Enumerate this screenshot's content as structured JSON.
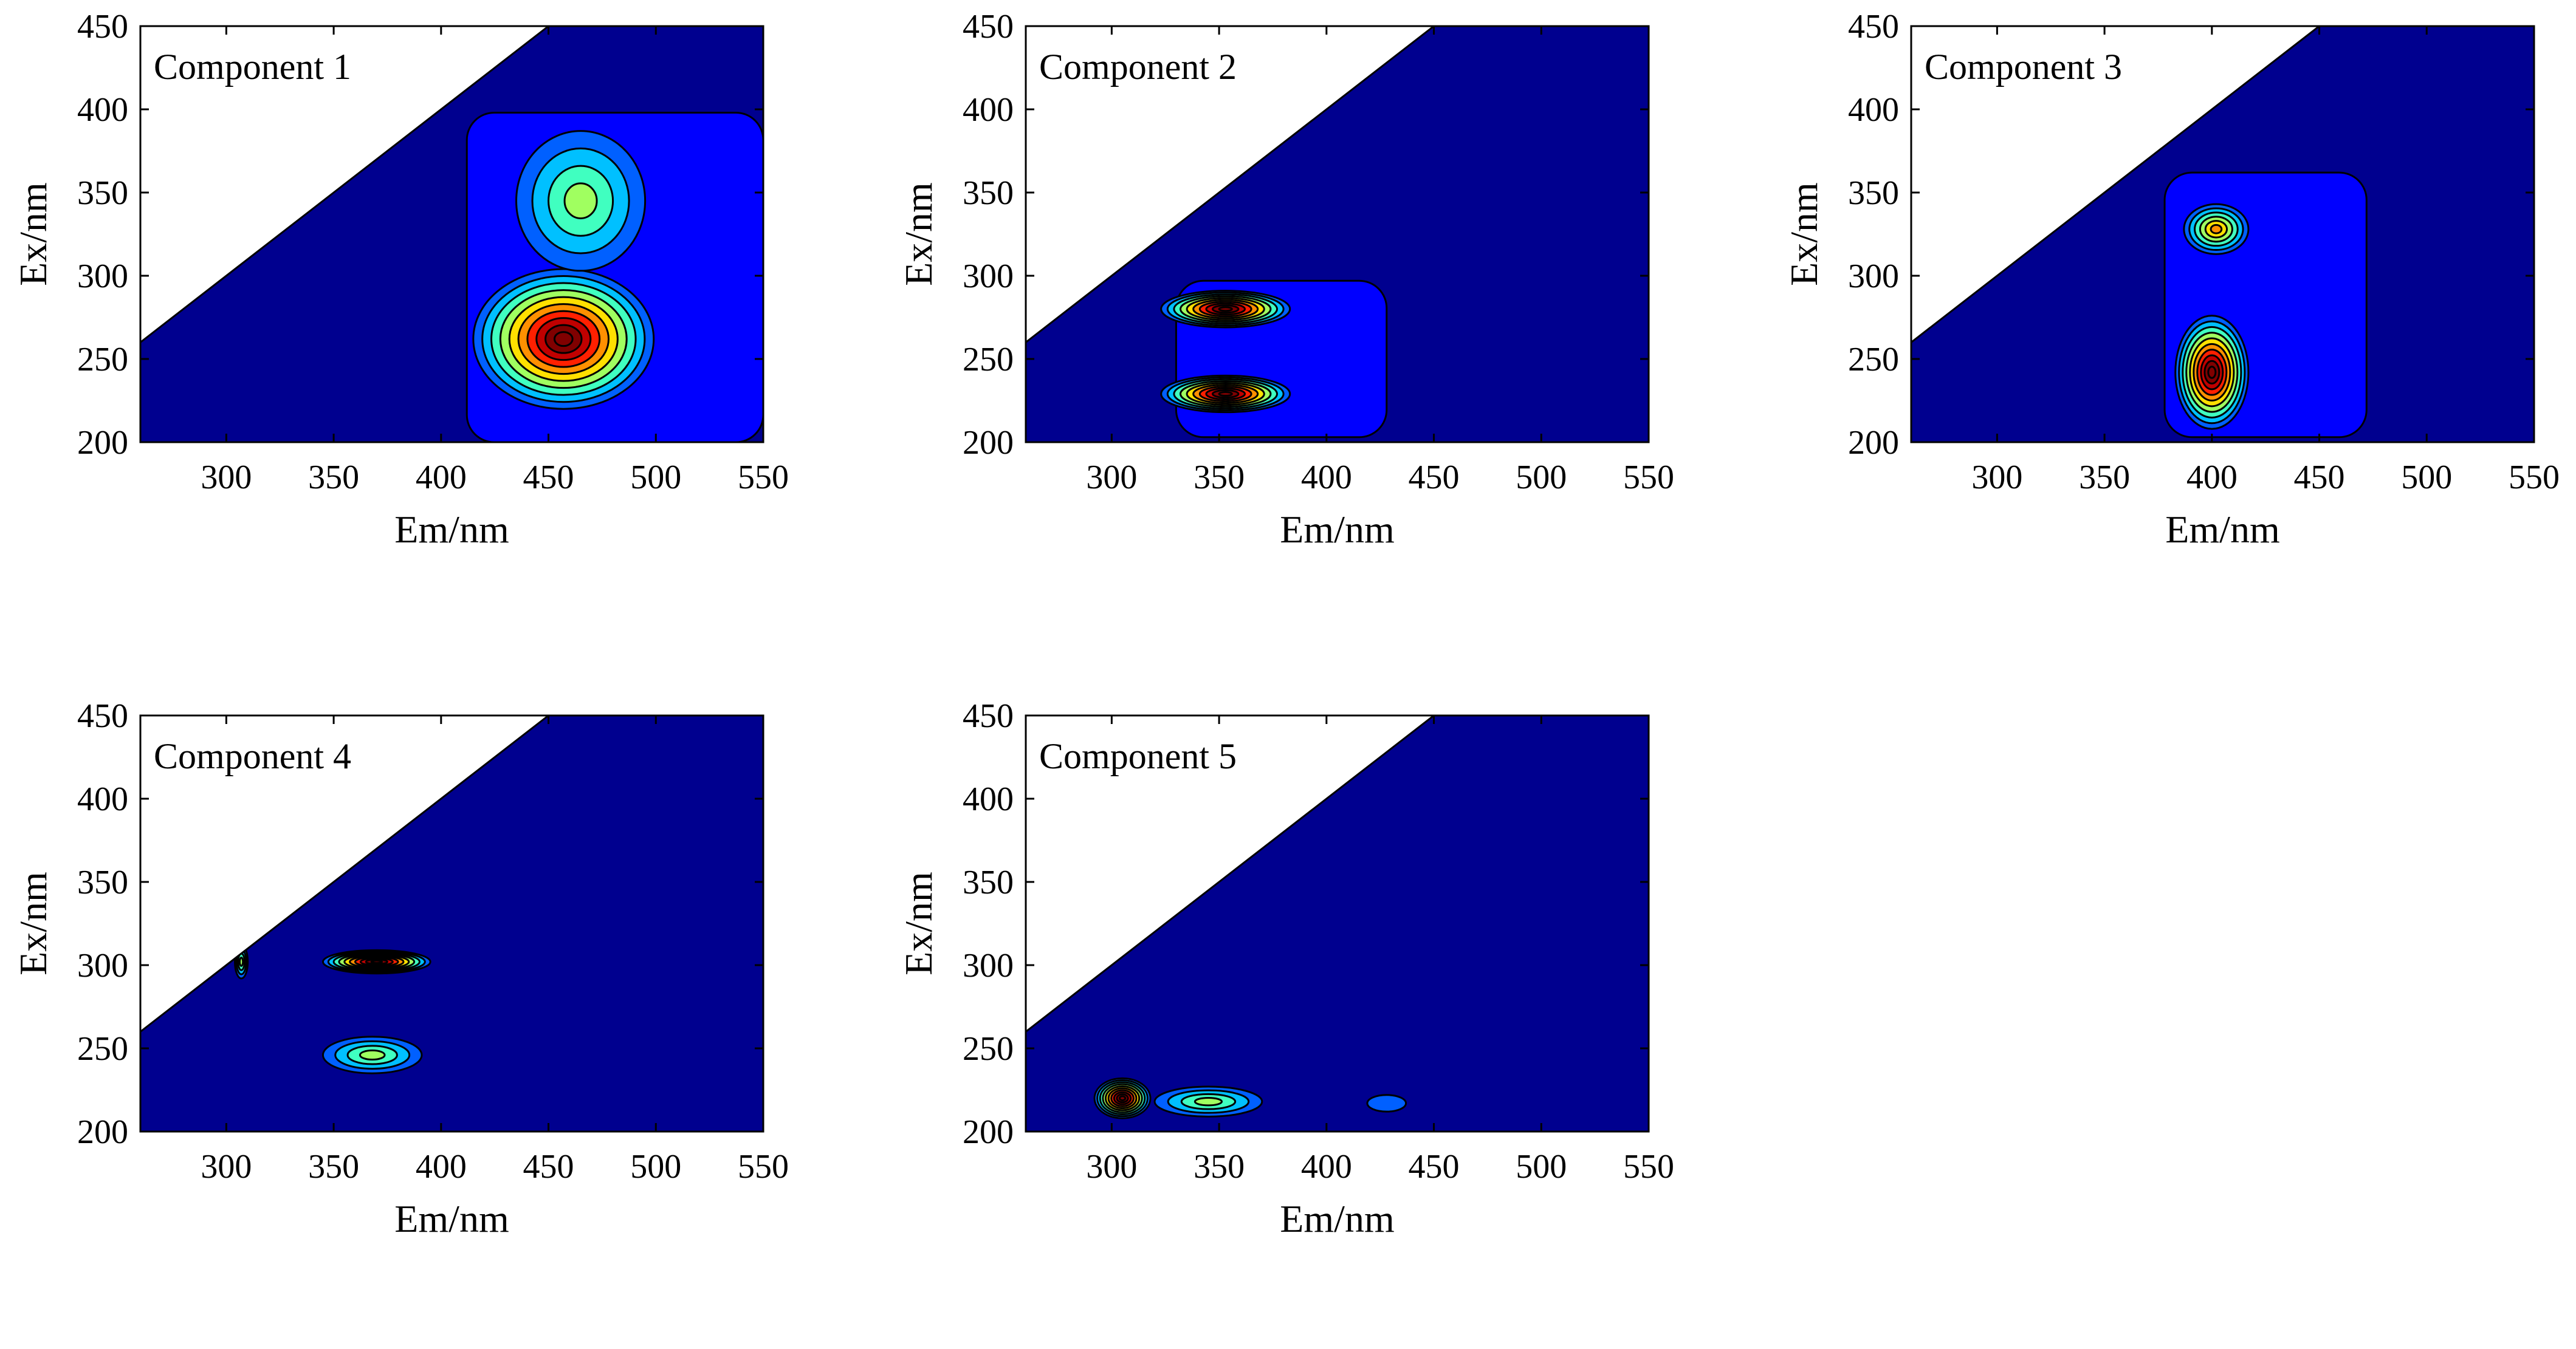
{
  "chart_data": [
    {
      "type": "contour",
      "title": "Component 1",
      "xlabel": "Em/nm",
      "ylabel": "Ex/nm",
      "xlim": [
        260,
        550
      ],
      "ylim": [
        200,
        450
      ],
      "xticks": [
        300,
        350,
        400,
        450,
        500,
        550
      ],
      "yticks": [
        200,
        250,
        300,
        350,
        400,
        450
      ],
      "peaks": [
        {
          "em": 457,
          "ex": 262,
          "level": 1.0
        },
        {
          "em": 465,
          "ex": 345,
          "level": 0.38
        }
      ]
    },
    {
      "type": "contour",
      "title": "Component 2",
      "xlabel": "Em/nm",
      "ylabel": "Ex/nm",
      "xlim": [
        260,
        550
      ],
      "ylim": [
        200,
        450
      ],
      "xticks": [
        300,
        350,
        400,
        450,
        500,
        550
      ],
      "yticks": [
        200,
        250,
        300,
        350,
        400,
        450
      ],
      "peaks": [
        {
          "em": 353,
          "ex": 280,
          "level": 1.0
        },
        {
          "em": 353,
          "ex": 229,
          "level": 1.0
        }
      ]
    },
    {
      "type": "contour",
      "title": "Component 3",
      "xlabel": "Em/nm",
      "ylabel": "Ex/nm",
      "xlim": [
        260,
        550
      ],
      "ylim": [
        200,
        450
      ],
      "xticks": [
        300,
        350,
        400,
        450,
        500,
        550
      ],
      "yticks": [
        200,
        250,
        300,
        350,
        400,
        450
      ],
      "peaks": [
        {
          "em": 400,
          "ex": 242,
          "level": 1.0
        },
        {
          "em": 402,
          "ex": 328,
          "level": 0.55
        }
      ]
    },
    {
      "type": "contour",
      "title": "Component 4",
      "xlabel": "Em/nm",
      "ylabel": "Ex/nm",
      "xlim": [
        260,
        550
      ],
      "ylim": [
        200,
        450
      ],
      "xticks": [
        300,
        350,
        400,
        450,
        500,
        550
      ],
      "yticks": [
        200,
        250,
        300,
        350,
        400,
        450
      ],
      "peaks": [
        {
          "em": 370,
          "ex": 302,
          "level": 1.0
        },
        {
          "em": 368,
          "ex": 246,
          "level": 0.42
        },
        {
          "em": 307,
          "ex": 302,
          "level": 0.35
        }
      ]
    },
    {
      "type": "contour",
      "title": "Component 5",
      "xlabel": "Em/nm",
      "ylabel": "Ex/nm",
      "xlim": [
        260,
        550
      ],
      "ylim": [
        200,
        450
      ],
      "xticks": [
        300,
        350,
        400,
        450,
        500,
        550
      ],
      "yticks": [
        200,
        250,
        300,
        350,
        400,
        450
      ],
      "peaks": [
        {
          "em": 305,
          "ex": 220,
          "level": 1.0
        },
        {
          "em": 345,
          "ex": 218,
          "level": 0.4
        },
        {
          "em": 428,
          "ex": 217,
          "level": 0.1
        }
      ]
    }
  ],
  "colors": {
    "background_fill": "#00008f",
    "masked_region": "#ffffff",
    "jet_scale": [
      "#00008f",
      "#0000ff",
      "#0060ff",
      "#00c0ff",
      "#40ffc0",
      "#a0ff60",
      "#ffe000",
      "#ff9000",
      "#ff2000",
      "#c00000",
      "#800000"
    ]
  }
}
